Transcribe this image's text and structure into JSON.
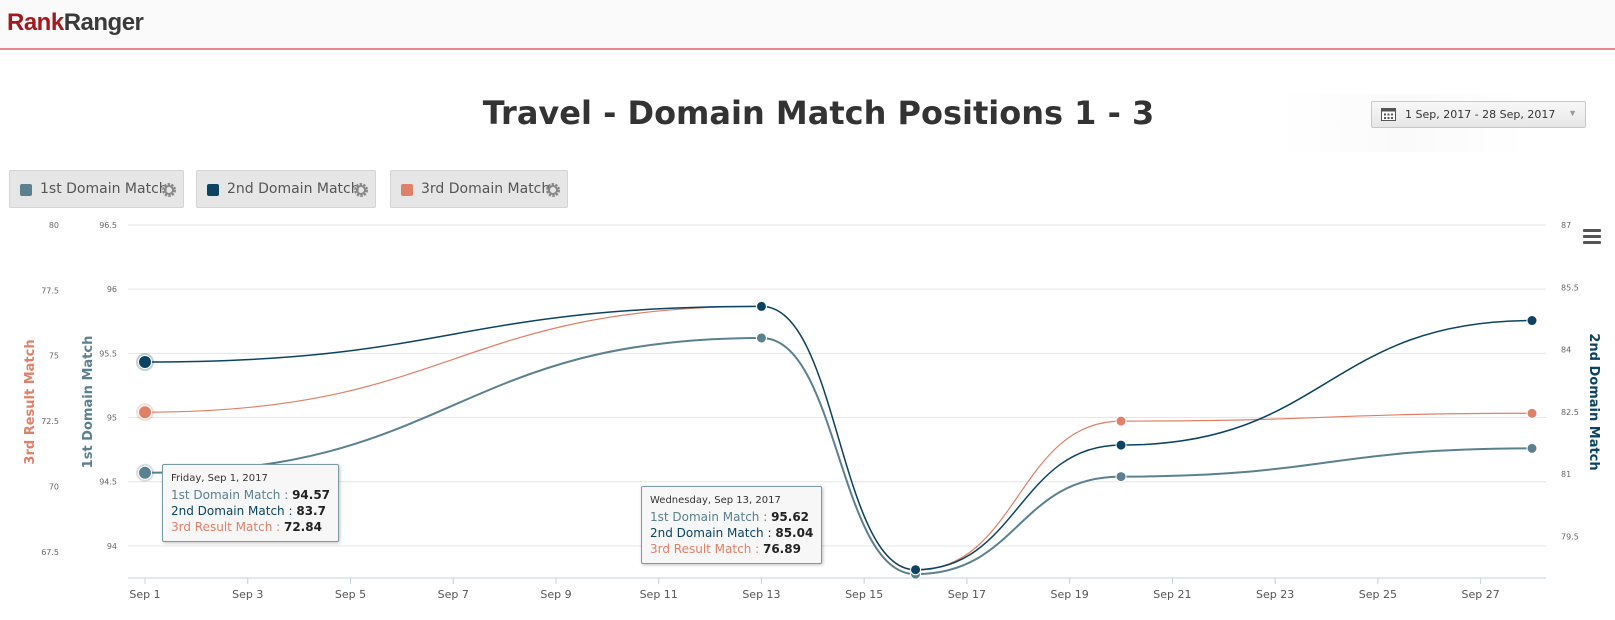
{
  "header": {
    "logo_part1": "Rank",
    "logo_part2": "Ranger"
  },
  "title": "Travel - Domain Match Positions 1 - 3",
  "date_range": {
    "label": "1 Sep, 2017 - 28 Sep, 2017",
    "icon": "calendar-icon"
  },
  "legend": [
    {
      "label": "1st Domain Match",
      "color": "#5b8090",
      "icon": "gear-icon"
    },
    {
      "label": "2nd Domain Match",
      "color": "#0c4363",
      "icon": "gear-icon"
    },
    {
      "label": "3rd Domain Match",
      "color": "#e08068",
      "icon": "gear-icon"
    }
  ],
  "chart_data": {
    "type": "line",
    "title": "Travel - Domain Match Positions 1 - 3",
    "x_ticks": [
      "Sep 1",
      "Sep 3",
      "Sep 5",
      "Sep 7",
      "Sep 9",
      "Sep 11",
      "Sep 13",
      "Sep 15",
      "Sep 17",
      "Sep 19",
      "Sep 21",
      "Sep 23",
      "Sep 25",
      "Sep 27"
    ],
    "xlim": [
      "2017-09-01",
      "2017-09-28"
    ],
    "axes": {
      "left_outer": {
        "label": "3rd Result Match",
        "ticks": [
          "80",
          "77.5",
          "75",
          "72.5",
          "70",
          "67.5"
        ],
        "range": [
          66.5,
          80
        ],
        "color": "#e08068"
      },
      "left_inner": {
        "label": "1st Domain Match",
        "ticks": [
          "96.5",
          "96",
          "95.5",
          "95",
          "94.5",
          "94"
        ],
        "range": [
          93.75,
          96.5
        ],
        "color": "#5b8090"
      },
      "right": {
        "label": "2nd Domain Match",
        "ticks": [
          "87",
          "85.5",
          "84",
          "82.5",
          "81",
          "79.5"
        ],
        "range": [
          78.5,
          87
        ],
        "color": "#0c4363"
      }
    },
    "grid": true,
    "series": [
      {
        "name": "1st Domain Match",
        "axis": "left_inner",
        "color": "#5b8090",
        "x": [
          "2017-09-01",
          "2017-09-13",
          "2017-09-16",
          "2017-09-20",
          "2017-09-28"
        ],
        "values": [
          94.57,
          95.62,
          93.78,
          94.54,
          94.76
        ]
      },
      {
        "name": "2nd Domain Match",
        "axis": "right",
        "color": "#0c4363",
        "x": [
          "2017-09-01",
          "2017-09-13",
          "2017-09-16",
          "2017-09-20",
          "2017-09-28"
        ],
        "values": [
          83.7,
          85.04,
          78.7,
          81.7,
          84.7
        ]
      },
      {
        "name": "3rd Result Match",
        "axis": "left_outer",
        "color": "#e08068",
        "x": [
          "2017-09-01",
          "2017-09-13",
          "2017-09-16",
          "2017-09-20",
          "2017-09-28"
        ],
        "values": [
          72.84,
          76.89,
          66.8,
          72.5,
          72.8
        ]
      }
    ],
    "tooltips": [
      {
        "header": "Friday, Sep 1, 2017",
        "rows": [
          {
            "label": "1st Domain Match",
            "value": "94.57",
            "color": "#5b8090"
          },
          {
            "label": "2nd Domain Match",
            "value": "83.7",
            "color": "#0c4363"
          },
          {
            "label": "3rd Result Match",
            "value": "72.84",
            "color": "#e08068"
          }
        ]
      },
      {
        "header": "Wednesday, Sep 13, 2017",
        "rows": [
          {
            "label": "1st Domain Match",
            "value": "95.62",
            "color": "#5b8090"
          },
          {
            "label": "2nd Domain Match",
            "value": "85.04",
            "color": "#0c4363"
          },
          {
            "label": "3rd Result Match",
            "value": "76.89",
            "color": "#e08068"
          }
        ]
      }
    ]
  },
  "menu_icon": "hamburger-menu-icon"
}
